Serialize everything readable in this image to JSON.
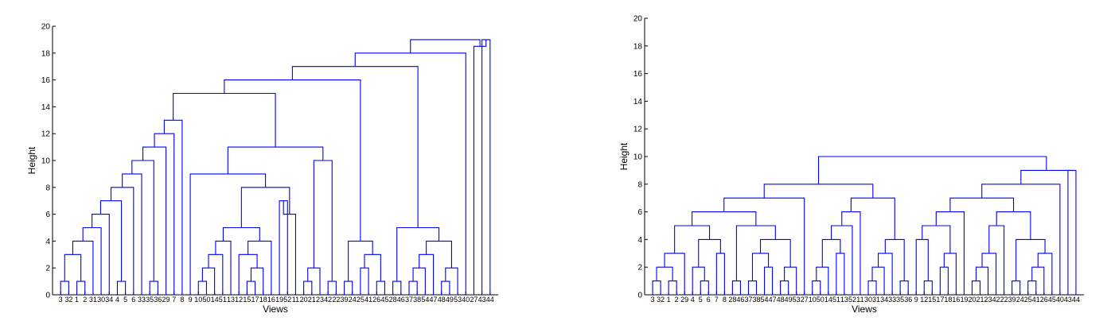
{
  "colors": {
    "dendrogram": "#0000ff",
    "axis": "#000000"
  },
  "chart_data": [
    {
      "type": "dendrogram",
      "xlabel": "Views",
      "ylabel": "Height",
      "ylim": [
        0,
        20
      ],
      "yticks": [
        0,
        2,
        4,
        6,
        8,
        10,
        12,
        14,
        16,
        18,
        20
      ],
      "leaves": [
        "3",
        "32",
        "1",
        "2",
        "31",
        "30",
        "34",
        "4",
        "5",
        "6",
        "33",
        "35",
        "36",
        "29",
        "7",
        "8",
        "9",
        "10",
        "50",
        "14",
        "51",
        "13",
        "12",
        "15",
        "17",
        "18",
        "16",
        "19",
        "52",
        "11",
        "20",
        "21",
        "23",
        "42",
        "22",
        "39",
        "24",
        "25",
        "41",
        "26",
        "45",
        "28",
        "46",
        "37",
        "38",
        "54",
        "47",
        "48",
        "49",
        "53",
        "40",
        "27",
        "43",
        "44"
      ],
      "merges": [
        [
          "3",
          "32",
          1
        ],
        [
          "1",
          "2",
          1
        ],
        [
          "L1",
          "N1",
          2
        ],
        [
          "N0",
          "N2",
          3
        ],
        [
          "N3",
          "31",
          4
        ],
        [
          "N4",
          "30",
          5
        ],
        [
          "N5",
          "34",
          6
        ],
        [
          "4",
          "5",
          1
        ],
        [
          "N6",
          "N7",
          7
        ],
        [
          "N8",
          "6",
          8
        ],
        [
          "N9",
          "33",
          9
        ],
        [
          "35",
          "36",
          1
        ],
        [
          "N10",
          "N11",
          10
        ],
        [
          "N12",
          "29",
          11
        ],
        [
          "N13",
          "7",
          12
        ],
        [
          "10",
          "50",
          1
        ],
        [
          "N15",
          "14",
          2
        ],
        [
          "N16",
          "51",
          3
        ],
        [
          "N17",
          "13",
          4
        ],
        [
          "12",
          "15",
          1
        ],
        [
          "17",
          "18",
          1
        ],
        [
          "N20",
          "16",
          2
        ],
        [
          "N21",
          "N19",
          3
        ],
        [
          "N22",
          "19",
          4
        ],
        [
          "N18",
          "N23",
          5
        ],
        [
          "N24",
          "52",
          6
        ],
        [
          "N25",
          "11",
          7
        ],
        [
          "N26",
          "20",
          8
        ],
        [
          "N27",
          "21",
          9
        ],
        [
          "23",
          "42",
          1
        ],
        [
          "N28",
          "N29",
          10
        ],
        [
          "N30",
          "22",
          11
        ],
        [
          "39",
          "24",
          1
        ],
        [
          "25",
          "41",
          1
        ],
        [
          "N32",
          "N33",
          2
        ],
        [
          "N34",
          "26",
          3
        ],
        [
          "N35",
          "45",
          4
        ],
        [
          "N31",
          "N36",
          10
        ],
        [
          "N14",
          "N37",
          13
        ],
        [
          "28",
          "46",
          1
        ],
        [
          "37",
          "38",
          1
        ],
        [
          "N39",
          "54",
          2
        ],
        [
          "N40",
          "47",
          3
        ],
        [
          "48",
          "49",
          1
        ],
        [
          "N42",
          "53",
          2
        ],
        [
          "N41",
          "N43",
          4
        ],
        [
          "N38",
          "N44",
          5
        ],
        [
          "N45",
          "40",
          5
        ],
        [
          "N38b",
          "N46",
          15
        ],
        [
          "N47",
          "27",
          16
        ],
        [
          "N48",
          "43",
          18
        ],
        [
          "N49",
          "44",
          19
        ]
      ]
    },
    {
      "type": "dendrogram",
      "xlabel": "Views",
      "ylabel": "Height",
      "ylim": [
        0,
        20
      ],
      "yticks": [
        0,
        2,
        4,
        6,
        8,
        10,
        12,
        14,
        16,
        18,
        20
      ],
      "leaves": [
        "3",
        "32",
        "1",
        "2",
        "29",
        "4",
        "5",
        "6",
        "7",
        "8",
        "28",
        "46",
        "37",
        "38",
        "54",
        "47",
        "48",
        "49",
        "53",
        "27",
        "10",
        "50",
        "14",
        "51",
        "13",
        "52",
        "11",
        "30",
        "31",
        "34",
        "33",
        "35",
        "36",
        "9",
        "12",
        "15",
        "17",
        "18",
        "16",
        "19",
        "20",
        "21",
        "23",
        "42",
        "22",
        "39",
        "24",
        "25",
        "41",
        "26",
        "45",
        "40",
        "43",
        "44"
      ],
      "merges": []
    }
  ]
}
